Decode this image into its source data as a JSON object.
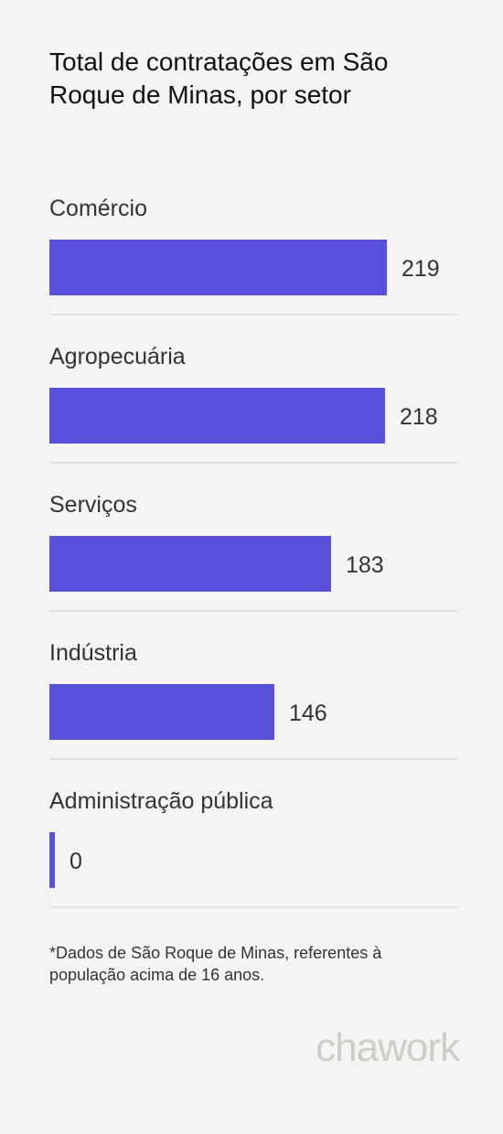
{
  "chart_data": {
    "type": "bar",
    "orientation": "horizontal",
    "title": "Total de contratações em São Roque de Minas, por setor",
    "categories": [
      "Comércio",
      "Agropecuária",
      "Serviços",
      "Indústria",
      "Administração pública"
    ],
    "values": [
      219,
      218,
      183,
      146,
      0
    ],
    "value_labels": [
      "219",
      "218",
      "183",
      "146",
      "0"
    ],
    "bar_color": "#5651d8",
    "grid": false,
    "legend": "none"
  },
  "footnote": "*Dados de São Roque de Minas, referentes à população acima de 16 anos.",
  "logo_text": "chawork"
}
